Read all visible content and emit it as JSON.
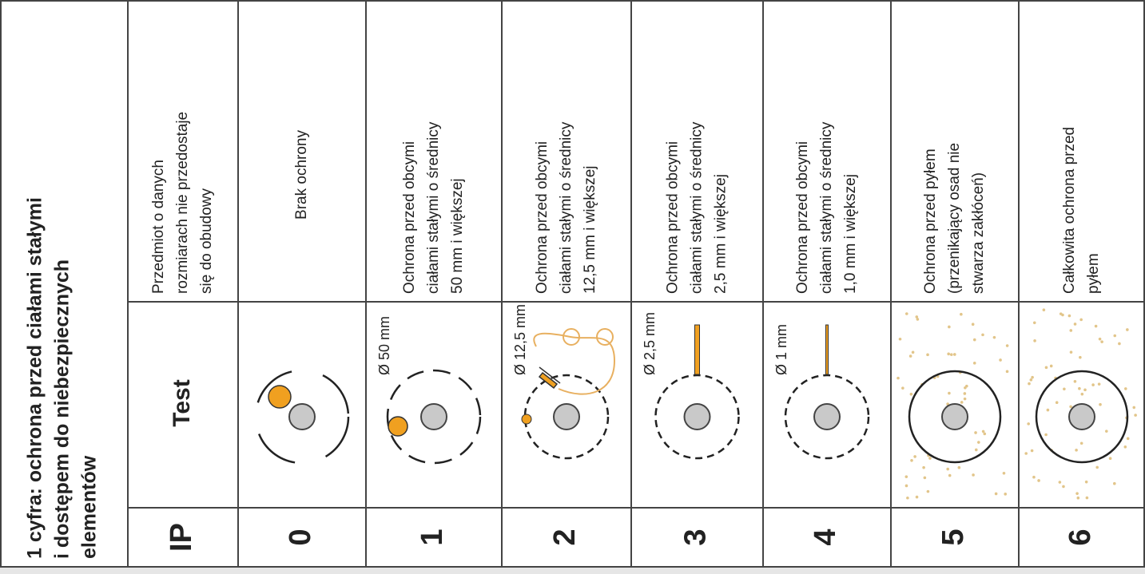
{
  "title": [
    "1 cyfra: ochrona przed ciałami stałymi",
    "i dostępem do niebezpiecznych",
    "elementów"
  ],
  "header": {
    "ip": "IP",
    "test": "Test",
    "description": [
      "Przedmiot o danych",
      "rozmiarach nie przedostaje",
      "się do obudowy"
    ]
  },
  "rows": [
    {
      "ip": "0",
      "description": [
        "Brak ochrony"
      ]
    },
    {
      "ip": "1",
      "test_label": "Ø 50 mm",
      "description": [
        "Ochrona przed obcymi",
        "ciałami stałymi o średnicy",
        "50 mm i większej"
      ]
    },
    {
      "ip": "2",
      "test_label": "Ø 12,5 mm",
      "description": [
        "Ochrona przed obcymi",
        "ciałami stałymi o średnicy",
        "12,5 mm i większej"
      ]
    },
    {
      "ip": "3",
      "test_label": "Ø 2,5 mm",
      "description": [
        "Ochrona przed obcymi",
        "ciałami stałymi o średnicy",
        "2,5 mm i większej"
      ]
    },
    {
      "ip": "4",
      "test_label": "Ø 1 mm",
      "description": [
        "Ochrona przed obcymi",
        "ciałami stałymi o średnicy",
        "1,0 mm i większej"
      ]
    },
    {
      "ip": "5",
      "description": [
        "Ochrona przed pyłem",
        "(przenikający osad nie",
        "stwarza zakłóceń)"
      ]
    },
    {
      "ip": "6",
      "description": [
        "Całkowita ochrona przed",
        "pyłem"
      ]
    }
  ]
}
